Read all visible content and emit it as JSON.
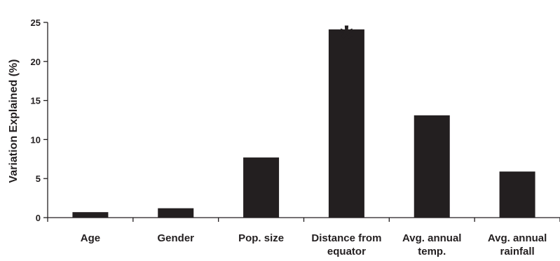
{
  "chart_data": {
    "type": "bar",
    "ylabel": "Variation Explained (%)",
    "xlabel": "",
    "ylim": [
      0,
      25
    ],
    "yticks": [
      0,
      5,
      10,
      15,
      20,
      25
    ],
    "grid": false,
    "categories": [
      [
        "Age"
      ],
      [
        "Gender"
      ],
      [
        "Pop. size"
      ],
      [
        "Distance from",
        "equator"
      ],
      [
        "Avg. annual",
        "temp."
      ],
      [
        "Avg. annual",
        "rainfall"
      ]
    ],
    "values": [
      0.7,
      1.2,
      7.7,
      24.1,
      13.1,
      5.9
    ],
    "significance_marker": {
      "category_index": 3,
      "symbol": "*"
    },
    "colors": {
      "bar": "#231f20",
      "axis": "#231f20"
    }
  }
}
